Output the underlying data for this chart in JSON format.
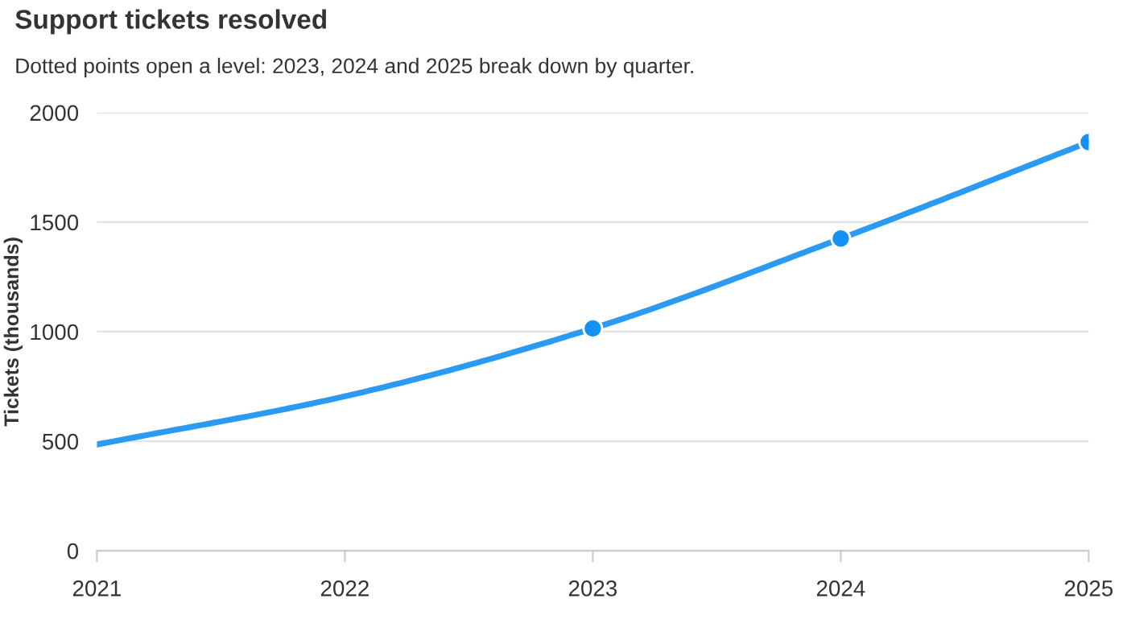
{
  "chart_data": {
    "type": "line",
    "title": "Support tickets resolved",
    "subtitle": "Dotted points open a level: 2023, 2024 and 2025 break down by quarter.",
    "ylabel": "Tickets (thousands)",
    "x": [
      2021,
      2022,
      2023,
      2024,
      2025
    ],
    "series": [
      {
        "color": "#2b9af3",
        "values": [
          485,
          705,
          1015,
          1425,
          1865
        ]
      },
      {
        "type": "scatter",
        "color": "#1491f5",
        "marker": "circle",
        "x": [
          2023,
          2024,
          2025
        ],
        "values": [
          1015,
          1425,
          1865
        ]
      }
    ],
    "xlim": [
      2021,
      2025
    ],
    "xticks": [
      2021,
      2022,
      2023,
      2024,
      2025
    ],
    "ylim": [
      0,
      2000
    ],
    "yticks": [
      0,
      500,
      1000,
      1500,
      2000
    ],
    "grid": "y",
    "legend": false
  }
}
